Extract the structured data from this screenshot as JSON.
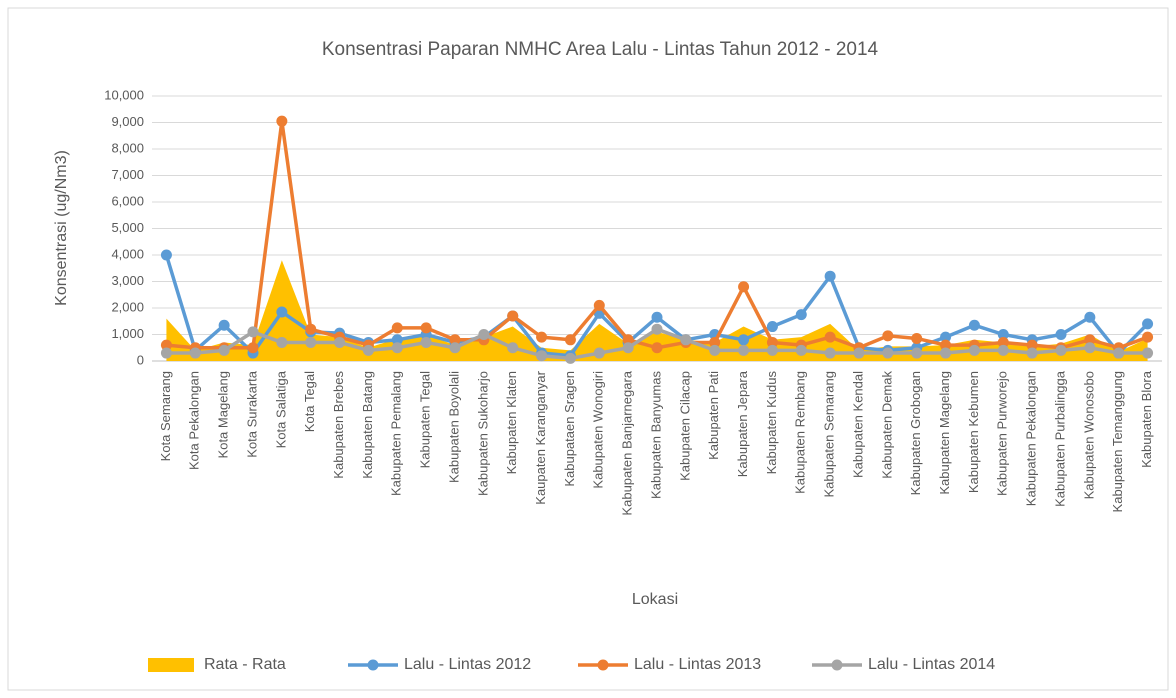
{
  "chart_data": {
    "type": "line",
    "title": "Konsentrasi Paparan NMHC Area Lalu - Lintas Tahun 2012 - 2014",
    "x_label": "Lokasi",
    "y_label": "Konsentrasi (ug/Nm3)",
    "categories": [
      "Kota Semarang",
      "Kota Pekalongan",
      "Kota Magelang",
      "Kota Surakarta",
      "Kota Salatiga",
      "Kota Tegal",
      "Kabupaten Brebes",
      "Kabupaten Batang",
      "Kabupaten Pemalang",
      "Kabupaten Tegal",
      "Kabupaten Boyolali",
      "Kabupaten Sukoharjo",
      "Kabupaten Klaten",
      "Kaupaten Karanganyar",
      "Kabupataen Sragen",
      "Kabupaten Wonogiri",
      "Kabupaten Banjarnegara",
      "Kabupaten Banyumas",
      "Kabupaten Cilacap",
      "Kabupaten Pati",
      "Kabupaten Jepara",
      "Kabupaten Kudus",
      "Kabupaten Rembang",
      "Kabupaten Semarang",
      "Kabupaten Kendal",
      "Kabupaten Demak",
      "Kabupaten Grobogan",
      "Kabupaten Magelang",
      "Kabupaten Kebumen",
      "Kabupaten Purworejo",
      "Kabupaten Pekalongan",
      "Kabupaten Purbalingga",
      "Kabupaten Wonosobo",
      "Kabupaten Temanggung",
      "Kabupaten Blora"
    ],
    "series": [
      {
        "name": "Rata - Rata",
        "style": "area",
        "color": "#ffc000",
        "values": [
          1600,
          400,
          700,
          600,
          3800,
          1000,
          900,
          500,
          850,
          1000,
          600,
          900,
          1300,
          500,
          400,
          1400,
          650,
          1100,
          800,
          700,
          1300,
          800,
          900,
          1400,
          400,
          550,
          550,
          600,
          800,
          700,
          550,
          650,
          1000,
          350,
          850
        ]
      },
      {
        "name": "Lalu - Lintas 2012",
        "style": "line",
        "color": "#5b9bd5",
        "values": [
          4000,
          400,
          1350,
          300,
          1850,
          1100,
          1050,
          700,
          800,
          1000,
          700,
          900,
          1700,
          300,
          200,
          1800,
          700,
          1650,
          800,
          1000,
          800,
          1300,
          1750,
          3200,
          500,
          400,
          500,
          900,
          1350,
          1000,
          800,
          1000,
          1650,
          300,
          1400
        ]
      },
      {
        "name": "Lalu - Lintas 2013",
        "style": "line",
        "color": "#ed7d31",
        "values": [
          600,
          500,
          500,
          500,
          9050,
          1200,
          900,
          600,
          1250,
          1250,
          800,
          800,
          1700,
          900,
          800,
          2100,
          800,
          500,
          700,
          700,
          2800,
          700,
          600,
          900,
          500,
          950,
          850,
          600,
          600,
          700,
          600,
          500,
          800,
          500,
          900
        ]
      },
      {
        "name": "Lalu - Lintas 2014",
        "style": "line",
        "color": "#a5a5a5",
        "values": [
          300,
          300,
          400,
          1100,
          700,
          700,
          700,
          400,
          500,
          700,
          500,
          1000,
          500,
          200,
          100,
          300,
          500,
          1200,
          800,
          400,
          400,
          400,
          400,
          300,
          300,
          300,
          300,
          300,
          400,
          400,
          300,
          400,
          500,
          300,
          300
        ]
      }
    ],
    "ylim": [
      0,
      10000
    ],
    "yticks": [
      0,
      {
        "value": 1000,
        "label": "1,000"
      },
      {
        "value": 2000,
        "label": "2,000"
      },
      {
        "value": 3000,
        "label": "3,000"
      },
      {
        "value": 4000,
        "label": "4,000"
      },
      {
        "value": 5000,
        "label": "5,000"
      },
      {
        "value": 6000,
        "label": "6,000"
      },
      {
        "value": 7000,
        "label": "7,000"
      },
      {
        "value": 8000,
        "label": "8,000"
      },
      {
        "value": 9000,
        "label": "9,000"
      },
      {
        "value": 10000,
        "label": "10,000"
      }
    ],
    "grid": true,
    "legend": "bottom"
  }
}
